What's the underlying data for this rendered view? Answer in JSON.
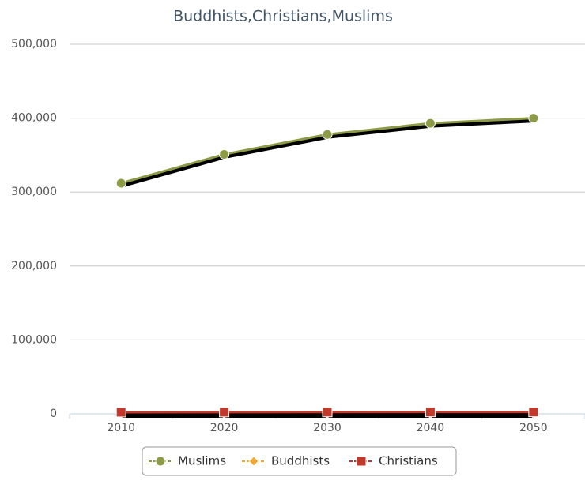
{
  "chart_data": {
    "type": "line",
    "title": "Buddhists,Christians,Muslims",
    "categories": [
      "2010",
      "2020",
      "2030",
      "2040",
      "2050"
    ],
    "series": [
      {
        "name": "Muslims",
        "color": "#8d9a46",
        "marker": "circle",
        "values": [
          312000,
          351000,
          378000,
          393000,
          400000
        ]
      },
      {
        "name": "Buddhists",
        "color": "#f0a830",
        "marker": "diamond",
        "values": [
          500,
          500,
          500,
          500,
          500
        ]
      },
      {
        "name": "Christians",
        "color": "#c0392b",
        "marker": "square",
        "values": [
          2200,
          2300,
          2400,
          2500,
          2500
        ]
      }
    ],
    "ylim": [
      0,
      500000
    ],
    "yticks": [
      {
        "value": 0,
        "label": "0"
      },
      {
        "value": 100000,
        "label": "100,000"
      },
      {
        "value": 200000,
        "label": "200,000"
      },
      {
        "value": 300000,
        "label": "300,000"
      },
      {
        "value": 400000,
        "label": "400,000"
      },
      {
        "value": 500000,
        "label": "500,000"
      }
    ],
    "grid": true,
    "legend": "bottom"
  }
}
